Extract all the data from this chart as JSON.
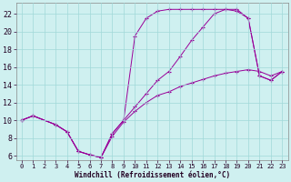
{
  "xlabel": "Windchill (Refroidissement éolien,°C)",
  "bg_color": "#cff0f0",
  "line_color": "#990099",
  "grid_color": "#a0d8d8",
  "xlim": [
    -0.5,
    23.5
  ],
  "ylim": [
    5.5,
    23.2
  ],
  "xticks": [
    0,
    1,
    2,
    3,
    4,
    5,
    6,
    7,
    8,
    9,
    10,
    11,
    12,
    13,
    14,
    15,
    16,
    17,
    18,
    19,
    20,
    21,
    22,
    23
  ],
  "yticks": [
    6,
    8,
    10,
    12,
    14,
    16,
    18,
    20,
    22
  ],
  "line1_x": [
    0,
    1,
    3,
    4,
    5,
    6,
    7,
    8,
    9,
    10,
    11,
    12,
    13,
    14,
    15,
    16,
    17,
    18,
    19,
    20,
    21,
    22,
    23
  ],
  "line1_y": [
    10,
    10.5,
    9.5,
    8.7,
    6.5,
    6.1,
    5.8,
    8.5,
    10.0,
    19.5,
    21.5,
    22.3,
    22.5,
    22.5,
    22.5,
    22.5,
    22.5,
    22.5,
    22.5,
    21.5,
    15.0,
    14.5,
    15.5
  ],
  "line2_x": [
    0,
    1,
    3,
    4,
    5,
    6,
    7,
    8,
    9,
    10,
    11,
    12,
    13,
    14,
    15,
    16,
    17,
    18,
    19,
    20,
    21,
    22,
    23
  ],
  "line2_y": [
    10,
    10.5,
    9.5,
    8.7,
    6.5,
    6.1,
    5.8,
    8.5,
    10.0,
    11.5,
    13.0,
    14.5,
    15.5,
    17.2,
    19.0,
    20.5,
    22.0,
    22.5,
    22.3,
    21.5,
    15.0,
    14.5,
    15.5
  ],
  "line3_x": [
    0,
    1,
    3,
    4,
    5,
    6,
    7,
    8,
    9,
    10,
    11,
    12,
    13,
    14,
    15,
    16,
    17,
    18,
    19,
    20,
    21,
    22,
    23
  ],
  "line3_y": [
    10,
    10.5,
    9.5,
    8.7,
    6.5,
    6.1,
    5.8,
    8.2,
    9.8,
    11.0,
    12.0,
    12.8,
    13.2,
    13.8,
    14.2,
    14.6,
    15.0,
    15.3,
    15.5,
    15.7,
    15.5,
    15.0,
    15.5
  ]
}
